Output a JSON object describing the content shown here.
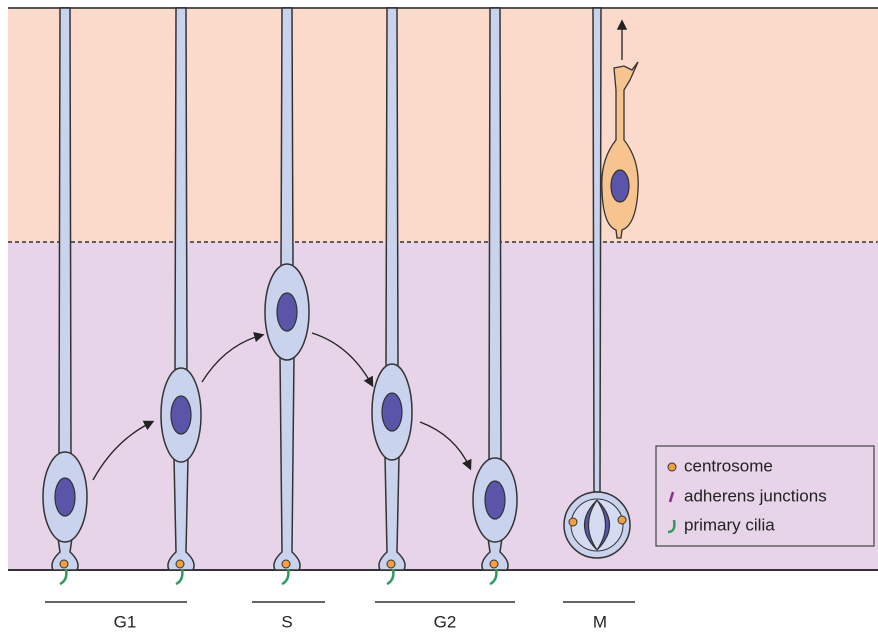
{
  "phases": [
    "G1",
    "S",
    "G2",
    "M"
  ],
  "legend": [
    "centrosome",
    "adherens junctions",
    "primary cilia"
  ]
}
